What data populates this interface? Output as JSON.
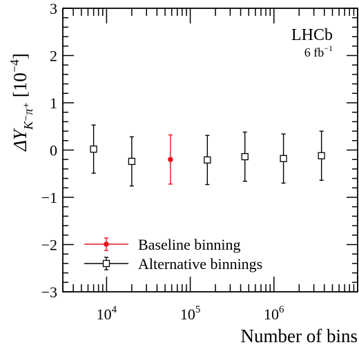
{
  "chart_data": {
    "type": "scatter",
    "xlabel": "Number of bins",
    "ylabel": "ΔY",
    "ylabel_subscript": "K⁻π⁺",
    "ylabel_unit": "[10",
    "ylabel_unit_exp": "−4",
    "ylabel_unit_close": "]",
    "x_scale": "log",
    "xlim": [
      3000,
      10000000
    ],
    "ylim": [
      -3,
      3
    ],
    "y_ticks": [
      {
        "value": -3,
        "label": "−3"
      },
      {
        "value": -2,
        "label": "−2"
      },
      {
        "value": -1,
        "label": "−1"
      },
      {
        "value": 0,
        "label": "0"
      },
      {
        "value": 1,
        "label": "1"
      },
      {
        "value": 2,
        "label": "2"
      },
      {
        "value": 3,
        "label": "3"
      }
    ],
    "x_ticks": [
      {
        "value": 10000,
        "base": "10",
        "exp": "4"
      },
      {
        "value": 100000,
        "base": "10",
        "exp": "5"
      },
      {
        "value": 1000000,
        "base": "10",
        "exp": "6"
      }
    ],
    "series": [
      {
        "name": "Baseline binning",
        "color": "#e8141a",
        "marker": "filled-circle",
        "points": [
          {
            "x": 58000,
            "y": -0.2,
            "err": 0.52
          }
        ]
      },
      {
        "name": "Alternative binnings",
        "color": "#000000",
        "marker": "open-square",
        "points": [
          {
            "x": 7000,
            "y": 0.02,
            "err": 0.51
          },
          {
            "x": 20000,
            "y": -0.24,
            "err": 0.52
          },
          {
            "x": 160000,
            "y": -0.21,
            "err": 0.52
          },
          {
            "x": 450000,
            "y": -0.14,
            "err": 0.52
          },
          {
            "x": 1300000,
            "y": -0.18,
            "err": 0.52
          },
          {
            "x": 3700000,
            "y": -0.12,
            "err": 0.52
          }
        ]
      }
    ],
    "legend_position": "bottom-left",
    "annotation": {
      "experiment": "LHCb",
      "lumi_value": "6 fb",
      "lumi_exp": "−1"
    },
    "grid": false
  }
}
